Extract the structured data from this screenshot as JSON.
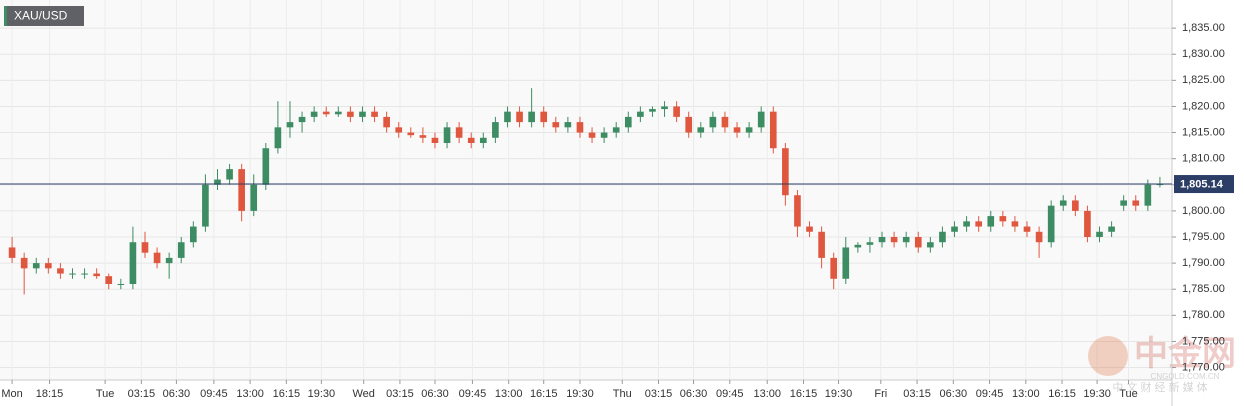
{
  "chart_data": {
    "type": "candlestick",
    "symbol": "XAU/USD",
    "x": [
      0,
      1,
      2,
      3,
      4,
      5,
      6,
      7,
      8,
      9,
      10,
      11,
      12,
      13,
      14,
      15,
      16,
      17,
      18,
      19,
      20,
      21,
      22,
      23,
      24,
      25,
      26,
      27,
      28,
      29,
      30,
      31,
      32,
      33,
      34,
      35,
      36,
      37,
      38,
      39,
      40,
      41,
      42,
      43,
      44,
      45,
      46,
      47,
      48,
      49,
      50,
      51,
      52,
      53,
      54,
      55,
      56,
      57,
      58,
      59,
      60,
      61,
      62,
      63,
      64,
      65,
      66,
      67,
      68,
      69,
      70,
      71,
      72,
      73,
      74,
      75,
      76,
      77,
      78,
      79,
      80,
      81,
      82,
      83,
      84,
      85,
      86,
      87,
      88,
      89,
      90,
      91,
      92,
      93,
      94,
      95
    ],
    "open": [
      1793,
      1791,
      1789,
      1790,
      1789,
      1788,
      1788,
      1788,
      1787.5,
      1786,
      1786,
      1794,
      1792,
      1790,
      1791,
      1794,
      1797,
      1805,
      1806,
      1808,
      1800,
      1805,
      1812,
      1816,
      1817,
      1818,
      1819,
      1818.5,
      1819,
      1818,
      1819,
      1818,
      1816,
      1815,
      1814.5,
      1814,
      1813,
      1816,
      1814,
      1813,
      1814,
      1817,
      1819,
      1817,
      1819,
      1817,
      1816,
      1817,
      1815,
      1814,
      1815,
      1816,
      1818,
      1819,
      1819.5,
      1820,
      1818,
      1815,
      1816,
      1818,
      1816,
      1815,
      1816,
      1819,
      1812,
      1803,
      1797,
      1796,
      1791,
      1787,
      1793,
      1793.5,
      1794,
      1795,
      1794,
      1795,
      1793,
      1794,
      1796,
      1797,
      1798,
      1797,
      1799,
      1798,
      1797,
      1796,
      1794,
      1801,
      1802,
      1800,
      1795,
      1796,
      1801,
      1802,
      1801,
      1805
    ],
    "high": [
      1795,
      1792,
      1791,
      1791,
      1790,
      1789,
      1789,
      1789,
      1788,
      1787,
      1797,
      1796,
      1793,
      1792,
      1795,
      1798,
      1807,
      1808,
      1809,
      1809,
      1807,
      1813,
      1821,
      1821,
      1819,
      1820,
      1820,
      1820,
      1820,
      1820,
      1820,
      1819,
      1817,
      1816,
      1816,
      1815,
      1817,
      1817,
      1815,
      1815,
      1818,
      1820,
      1820,
      1823.5,
      1820,
      1818,
      1818,
      1818,
      1816,
      1816,
      1817,
      1819,
      1820,
      1820,
      1821,
      1821,
      1819,
      1817,
      1819,
      1819,
      1817,
      1817,
      1820,
      1820,
      1813,
      1804,
      1798,
      1797,
      1792,
      1795,
      1794,
      1795,
      1796,
      1796,
      1796,
      1796,
      1795,
      1797,
      1798,
      1799,
      1799,
      1800,
      1800,
      1799,
      1798,
      1797,
      1802,
      1803,
      1803,
      1801,
      1797,
      1798,
      1803,
      1803,
      1806,
      1806.5
    ],
    "low": [
      1790,
      1784,
      1788,
      1788,
      1787,
      1787,
      1787,
      1787,
      1785,
      1785,
      1785,
      1791,
      1789,
      1787,
      1790,
      1793,
      1796,
      1804,
      1805,
      1798,
      1799,
      1804,
      1811,
      1814,
      1815,
      1817,
      1818,
      1818,
      1817,
      1817,
      1817,
      1815,
      1814,
      1814,
      1813,
      1812,
      1812,
      1813,
      1812,
      1812,
      1813,
      1816,
      1816,
      1816,
      1816,
      1815,
      1815,
      1814,
      1813,
      1813,
      1814,
      1815,
      1817,
      1818,
      1818,
      1817,
      1814,
      1814,
      1815,
      1815,
      1814,
      1814,
      1815,
      1811,
      1801,
      1795,
      1795,
      1789,
      1785,
      1786,
      1792,
      1792,
      1793,
      1793,
      1793,
      1792,
      1792,
      1793,
      1795,
      1796,
      1796,
      1796,
      1797,
      1796,
      1795,
      1791,
      1793,
      1800,
      1799,
      1794,
      1794,
      1795,
      1800,
      1800,
      1800,
      1804.5
    ],
    "close": [
      1791,
      1789,
      1790,
      1789,
      1788,
      1788,
      1788,
      1787.5,
      1786,
      1786,
      1794,
      1792,
      1790,
      1791,
      1794,
      1797,
      1805,
      1806,
      1808,
      1800,
      1805,
      1812,
      1816,
      1817,
      1818,
      1819,
      1818.5,
      1819,
      1818,
      1819,
      1818,
      1816,
      1815,
      1814.5,
      1814,
      1813,
      1816,
      1814,
      1813,
      1814,
      1817,
      1819,
      1817,
      1819,
      1817,
      1816,
      1817,
      1815,
      1814,
      1815,
      1816,
      1818,
      1819,
      1819.5,
      1820,
      1818,
      1815,
      1816,
      1818,
      1816,
      1815,
      1816,
      1819,
      1812,
      1803,
      1797,
      1796,
      1791,
      1787,
      1793,
      1793.5,
      1794,
      1795,
      1794,
      1795,
      1793,
      1794,
      1796,
      1797,
      1798,
      1797,
      1799,
      1798,
      1797,
      1796,
      1794,
      1801,
      1802,
      1800,
      1795,
      1796,
      1797,
      1802,
      1801,
      1805,
      1805.14
    ],
    "up_color": "#3d8c63",
    "down_color": "#e0573f",
    "last_price": {
      "value": 1805.14,
      "label": "1,805.14"
    },
    "last_price_color": "#2c3e66",
    "xlim": [
      -1,
      96
    ],
    "xticks": [
      {
        "value": 0,
        "label": "Mon"
      },
      {
        "value": 3.1,
        "label": "18:15"
      },
      {
        "value": 7.7,
        "label": "Tue"
      },
      {
        "value": 10.7,
        "label": "03:15"
      },
      {
        "value": 13.6,
        "label": "06:30"
      },
      {
        "value": 16.7,
        "label": "09:45"
      },
      {
        "value": 19.7,
        "label": "13:00"
      },
      {
        "value": 22.7,
        "label": "16:15"
      },
      {
        "value": 25.6,
        "label": "19:30"
      },
      {
        "value": 29.1,
        "label": "Wed"
      },
      {
        "value": 32.1,
        "label": "03:15"
      },
      {
        "value": 35,
        "label": "06:30"
      },
      {
        "value": 38.1,
        "label": "09:45"
      },
      {
        "value": 41.1,
        "label": "13:00"
      },
      {
        "value": 44,
        "label": "16:15"
      },
      {
        "value": 47,
        "label": "19:30"
      },
      {
        "value": 50.5,
        "label": "Thu"
      },
      {
        "value": 53.5,
        "label": "03:15"
      },
      {
        "value": 56.4,
        "label": "06:30"
      },
      {
        "value": 59.4,
        "label": "09:45"
      },
      {
        "value": 62.5,
        "label": "13:00"
      },
      {
        "value": 65.5,
        "label": "16:15"
      },
      {
        "value": 68.4,
        "label": "19:30"
      },
      {
        "value": 71.9,
        "label": "Fri"
      },
      {
        "value": 74.9,
        "label": "03:15"
      },
      {
        "value": 77.9,
        "label": "06:30"
      },
      {
        "value": 80.9,
        "label": "09:45"
      },
      {
        "value": 83.9,
        "label": "13:00"
      },
      {
        "value": 86.9,
        "label": "16:15"
      },
      {
        "value": 89.8,
        "label": "19:30"
      },
      {
        "value": 92.4,
        "label": "Tue"
      }
    ],
    "ylim": [
      1768,
      1840
    ],
    "yticks": [
      {
        "value": 1770,
        "label": "1,770.00"
      },
      {
        "value": 1775,
        "label": "1,775.00"
      },
      {
        "value": 1780,
        "label": "1,780.00"
      },
      {
        "value": 1785,
        "label": "1,785.00"
      },
      {
        "value": 1790,
        "label": "1,790.00"
      },
      {
        "value": 1795,
        "label": "1,795.00"
      },
      {
        "value": 1800,
        "label": "1,800.00"
      },
      {
        "value": 1805,
        "label": "1,805.00"
      },
      {
        "value": 1810,
        "label": "1,810.00"
      },
      {
        "value": 1815,
        "label": "1,815.00"
      },
      {
        "value": 1820,
        "label": "1,820.00"
      },
      {
        "value": 1825,
        "label": "1,825.00"
      },
      {
        "value": 1830,
        "label": "1,830.00"
      },
      {
        "value": 1835,
        "label": "1,835.00"
      }
    ],
    "grid": true,
    "watermark": {
      "logo": "中金网",
      "domain": "CNGOLD.COM.CN",
      "tagline": "中 文 财 经 新 媒 体"
    }
  }
}
